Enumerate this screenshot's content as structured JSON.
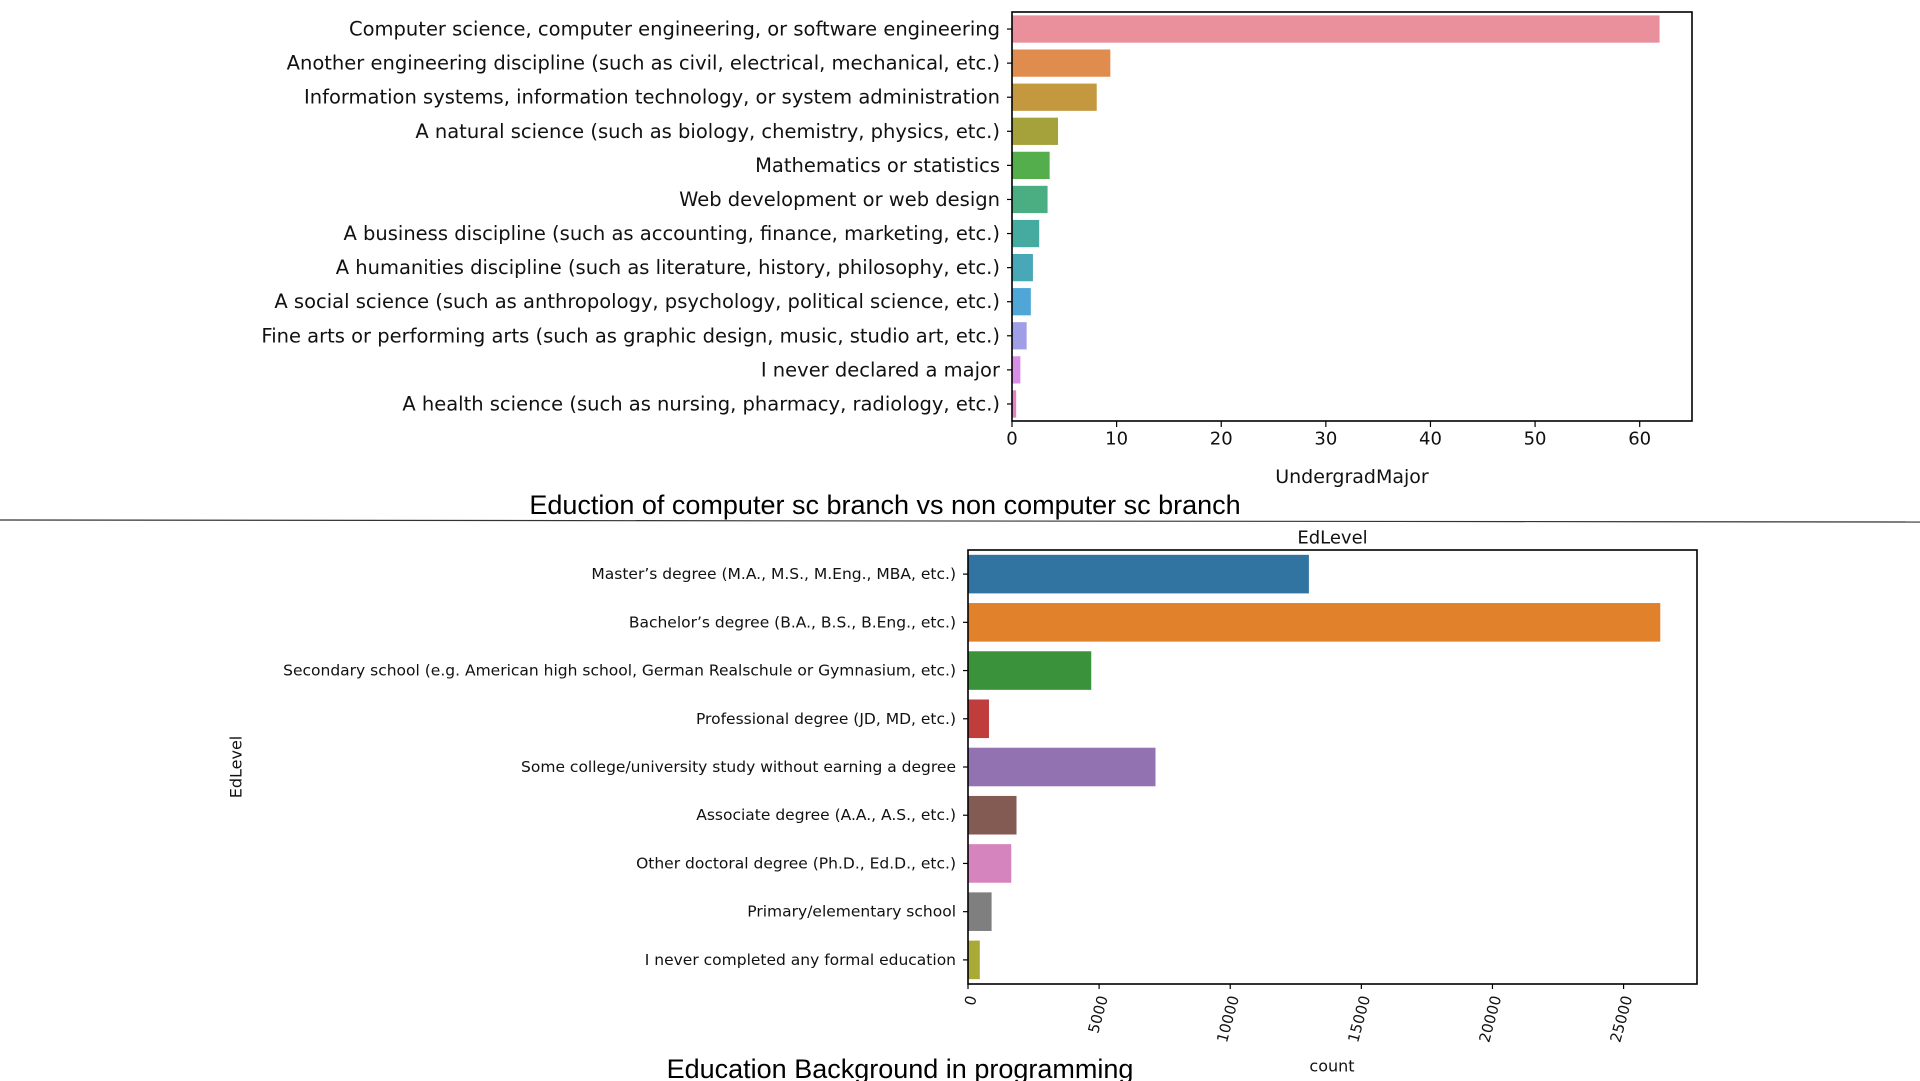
{
  "chart_data": [
    {
      "type": "bar",
      "orientation": "horizontal",
      "title": "",
      "caption": "Eduction of computer sc branch vs non computer sc branch",
      "xlabel": "UndergradMajor",
      "ylabel": "",
      "xlim": [
        0,
        65
      ],
      "xticks": [
        "0",
        "10",
        "20",
        "30",
        "40",
        "50",
        "60"
      ],
      "grid": false,
      "categories": [
        "Computer science, computer engineering, or software engineering",
        "Another engineering discipline (such as civil, electrical, mechanical, etc.)",
        "Information systems, information technology, or system administration",
        "A natural science (such as biology, chemistry, physics, etc.)",
        "Mathematics or statistics",
        "Web development or web design",
        "A business discipline (such as accounting, finance, marketing, etc.)",
        "A humanities discipline (such as literature, history, philosophy, etc.)",
        "A social science (such as anthropology, psychology, political science, etc.)",
        "Fine arts or performing arts (such as graphic design, music, studio art, etc.)",
        "I never declared a major",
        "A health science (such as nursing, pharmacy, radiology, etc.)"
      ],
      "values": [
        61.9,
        9.4,
        8.1,
        4.4,
        3.6,
        3.4,
        2.6,
        2.0,
        1.8,
        1.4,
        0.8,
        0.4
      ],
      "colors": [
        "#ea8f9c",
        "#e08c4f",
        "#c4983e",
        "#a5a23b",
        "#55ae4c",
        "#4aae82",
        "#45aba0",
        "#48a8b8",
        "#4ea7d6",
        "#9f9ee6",
        "#d98ee6",
        "#e77fc4"
      ]
    },
    {
      "type": "bar",
      "orientation": "horizontal",
      "title": "EdLevel",
      "caption": "Education Background in programming",
      "xlabel": "count",
      "ylabel": "EdLevel",
      "xlim": [
        0,
        27800
      ],
      "xticks": [
        "0",
        "5000",
        "10000",
        "15000",
        "20000",
        "25000"
      ],
      "grid": false,
      "categories": [
        "Master’s degree (M.A., M.S., M.Eng., MBA, etc.)",
        "Bachelor’s degree (B.A., B.S., B.Eng., etc.)",
        "Secondary school (e.g. American high school, German Realschule or Gymnasium, etc.)",
        "Professional degree (JD, MD, etc.)",
        "Some college/university study without earning a degree",
        "Associate degree (A.A., A.S., etc.)",
        "Other doctoral degree (Ph.D., Ed.D., etc.)",
        "Primary/elementary school",
        "I never completed any formal education"
      ],
      "values": [
        13000,
        26400,
        4700,
        800,
        7150,
        1850,
        1650,
        900,
        450
      ],
      "colors": [
        "#3274a1",
        "#e1812c",
        "#3a923a",
        "#c03d3e",
        "#9372b2",
        "#845b53",
        "#d684bd",
        "#7f7f7f",
        "#a9aa35"
      ]
    }
  ]
}
